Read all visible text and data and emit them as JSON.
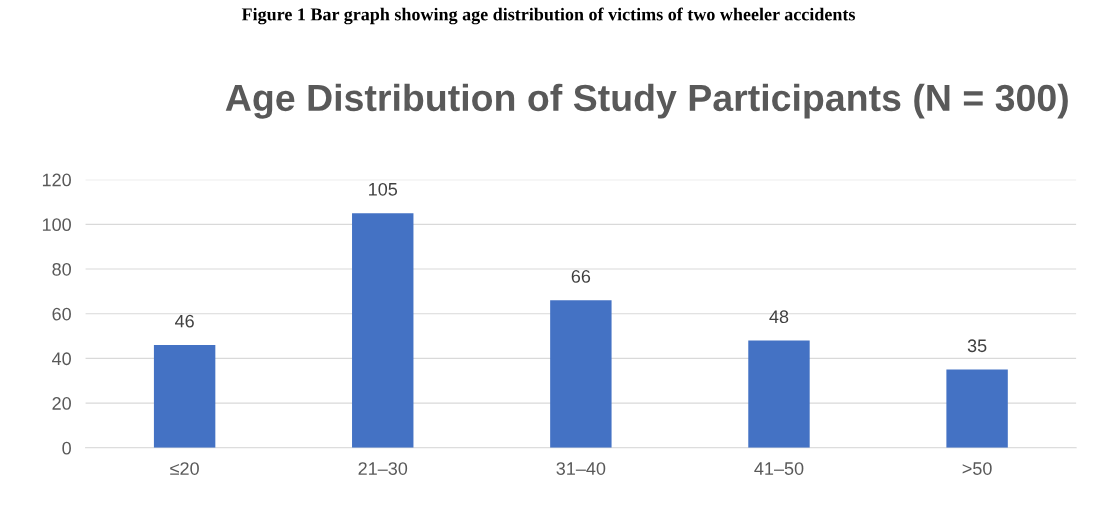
{
  "chart_data": {
    "type": "bar",
    "title": "Age Distribution of Study Participants (N = 300)",
    "annotations": [
      "Figure 1 Bar graph showing age distribution of victims of two wheeler accidents"
    ],
    "categories": [
      "≤20",
      "21–30",
      "31–40",
      "41–50",
      ">50"
    ],
    "values": [
      46,
      105,
      66,
      48,
      35
    ],
    "color": "#4472c4",
    "ylim": [
      0,
      120
    ],
    "yticks": [
      0,
      20,
      40,
      60,
      80,
      100,
      120
    ],
    "grid": "y",
    "data_labels": true
  }
}
